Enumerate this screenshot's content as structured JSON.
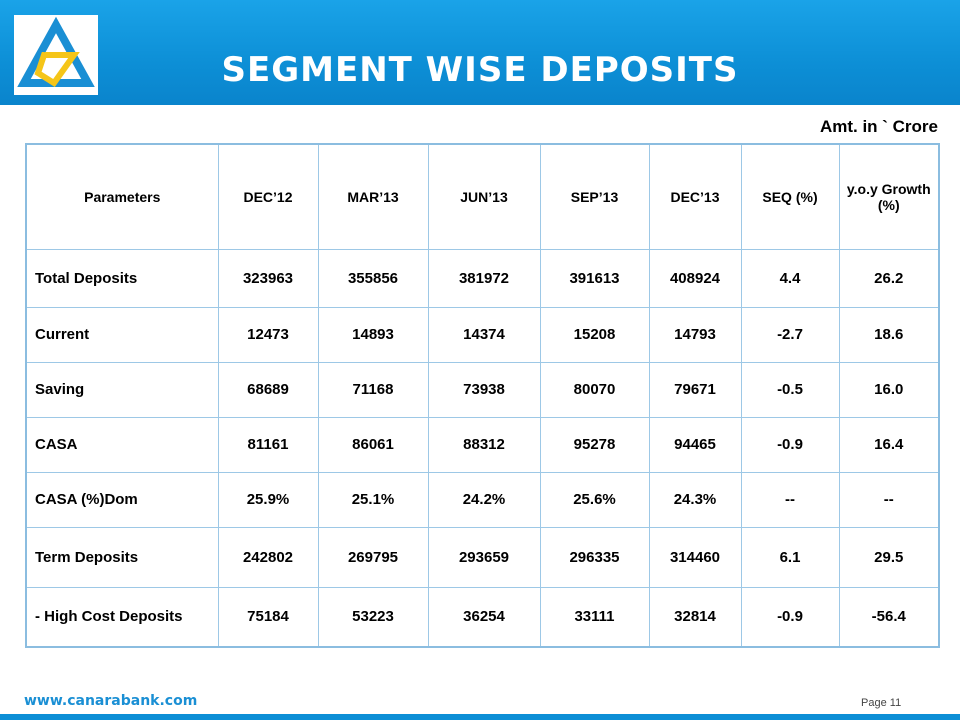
{
  "header": {
    "title": "SEGMENT WISE DEPOSITS",
    "logo": "canara-bank-logo"
  },
  "amount_note": "Amt. in ` Crore",
  "table": {
    "columns": [
      "Parameters",
      "DEC’12",
      "MAR’13",
      "JUN’13",
      "SEP’13",
      "DEC’13",
      "SEQ (%)",
      "y.o.y Growth (%)"
    ],
    "rows": [
      [
        "Total Deposits",
        "323963",
        "355856",
        "381972",
        "391613",
        "408924",
        "4.4",
        "26.2"
      ],
      [
        "Current",
        "12473",
        "14893",
        "14374",
        "15208",
        "14793",
        "-2.7",
        "18.6"
      ],
      [
        "Saving",
        "68689",
        "71168",
        "73938",
        "80070",
        "79671",
        "-0.5",
        "16.0"
      ],
      [
        "CASA",
        "81161",
        "86061",
        "88312",
        "95278",
        "94465",
        "-0.9",
        "16.4"
      ],
      [
        "CASA (%)Dom",
        "25.9%",
        "25.1%",
        "24.2%",
        "25.6%",
        "24.3%",
        "--",
        "--"
      ],
      [
        "Term  Deposits",
        "242802",
        "269795",
        "293659",
        "296335",
        "314460",
        "6.1",
        "29.5"
      ],
      [
        "- High Cost Deposits",
        "75184",
        "53223",
        "36254",
        "33111",
        "32814",
        "-0.9",
        "-56.4"
      ]
    ]
  },
  "footer": {
    "url": "www.canarabank.com",
    "page_label": "Page",
    "page_number": "11"
  },
  "colors": {
    "header_blue": "#0d8fd6",
    "logo_blue": "#1a8fd4",
    "logo_yellow": "#f5c518",
    "table_border": "#9dc8e6"
  }
}
